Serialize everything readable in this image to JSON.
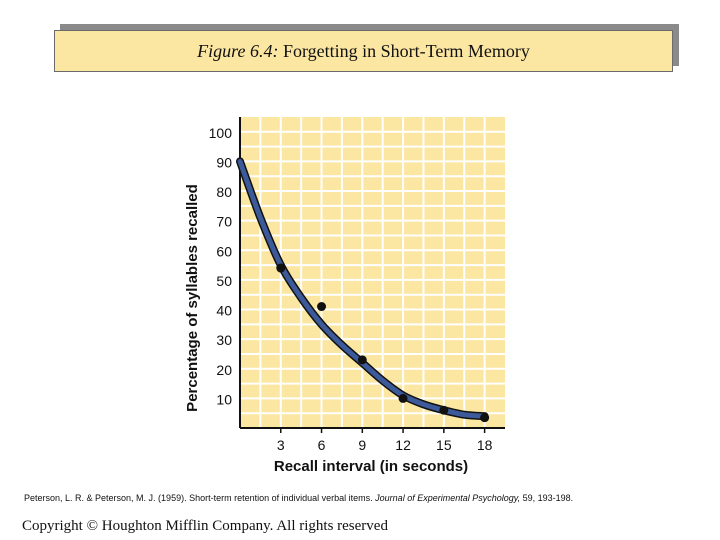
{
  "header": {
    "figure_label": "Figure 6.4:",
    "title": "Forgetting in Short-Term Memory"
  },
  "chart_data": {
    "type": "line",
    "title": "Forgetting in Short-Term Memory",
    "xlabel": "Recall interval (in seconds)",
    "ylabel": "Percentage of syllables recalled",
    "x_ticks": [
      3,
      6,
      9,
      12,
      15,
      18
    ],
    "y_ticks": [
      10,
      20,
      30,
      40,
      50,
      60,
      70,
      80,
      90,
      100
    ],
    "xlim": [
      0,
      19.5
    ],
    "ylim": [
      0,
      105
    ],
    "grid": true,
    "series": [
      {
        "name": "data points",
        "kind": "scatter",
        "x": [
          3,
          6,
          9,
          12,
          15,
          18
        ],
        "y": [
          54,
          41,
          23,
          10,
          6,
          3.5
        ]
      },
      {
        "name": "fitted curve",
        "kind": "line",
        "x": [
          0,
          1.5,
          3,
          4.5,
          6,
          7.5,
          9,
          10.5,
          12,
          13.5,
          15,
          16.5,
          18
        ],
        "y": [
          90,
          71,
          55,
          44,
          35,
          28,
          22,
          16,
          11,
          8,
          6,
          4.5,
          4
        ]
      }
    ],
    "colors": {
      "background": "#fbe6a2",
      "grid": "#ffffff",
      "curve": "#3c5a9a",
      "curve_outline": "#111111",
      "points": "#111111"
    }
  },
  "footer": {
    "citation_authors": "Peterson, L. R. & Peterson, M. J. (1959). Short-term retention of individual verbal items.",
    "citation_journal": "Journal of Experimental Psychology,",
    "citation_tail": "59, 193-198.",
    "copyright": "Copyright © Houghton Mifflin Company.  All rights reserved"
  }
}
